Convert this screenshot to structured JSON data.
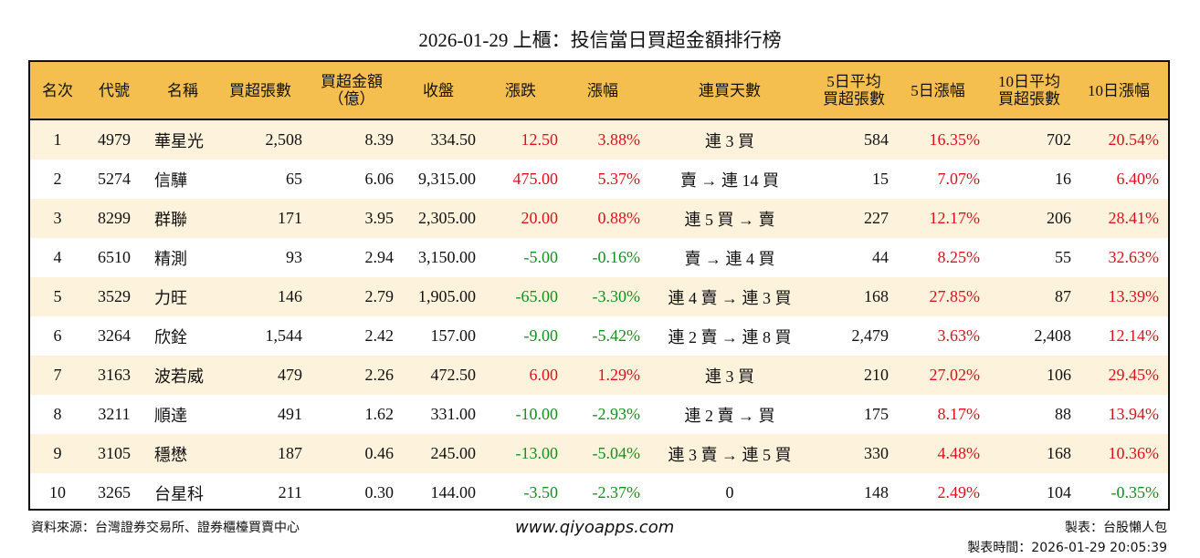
{
  "title": "2026-01-29 上櫃：投信當日買超金額排行榜",
  "colors": {
    "header_bg": "#f5bf4f",
    "stripe_bg": "#fdf3dc",
    "up": "#e0101a",
    "down": "#14901e"
  },
  "columns": [
    "名次",
    "代號",
    "名稱",
    "買超張數",
    "買超金額\n（億）",
    "收盤",
    "漲跌",
    "漲幅",
    "連買天數",
    "5日平均\n買超張數",
    "5日漲幅",
    "10日平均\n買超張數",
    "10日漲幅"
  ],
  "rows": [
    [
      "1",
      "4979",
      "華星光",
      "2,508",
      "8.39",
      "334.50",
      "12.50",
      "3.88%",
      "連 3 買",
      "584",
      "16.35%",
      "702",
      "20.54%"
    ],
    [
      "2",
      "5274",
      "信驊",
      "65",
      "6.06",
      "9,315.00",
      "475.00",
      "5.37%",
      "賣 → 連 14 買",
      "15",
      "7.07%",
      "16",
      "6.40%"
    ],
    [
      "3",
      "8299",
      "群聯",
      "171",
      "3.95",
      "2,305.00",
      "20.00",
      "0.88%",
      "連 5 買 → 賣",
      "227",
      "12.17%",
      "206",
      "28.41%"
    ],
    [
      "4",
      "6510",
      "精測",
      "93",
      "2.94",
      "3,150.00",
      "-5.00",
      "-0.16%",
      "賣 → 連 4 買",
      "44",
      "8.25%",
      "55",
      "32.63%"
    ],
    [
      "5",
      "3529",
      "力旺",
      "146",
      "2.79",
      "1,905.00",
      "-65.00",
      "-3.30%",
      "連 4 賣 → 連 3 買",
      "168",
      "27.85%",
      "87",
      "13.39%"
    ],
    [
      "6",
      "3264",
      "欣銓",
      "1,544",
      "2.42",
      "157.00",
      "-9.00",
      "-5.42%",
      "連 2 賣 → 連 8 買",
      "2,479",
      "3.63%",
      "2,408",
      "12.14%"
    ],
    [
      "7",
      "3163",
      "波若威",
      "479",
      "2.26",
      "472.50",
      "6.00",
      "1.29%",
      "連 3 買",
      "210",
      "27.02%",
      "106",
      "29.45%"
    ],
    [
      "8",
      "3211",
      "順達",
      "491",
      "1.62",
      "331.00",
      "-10.00",
      "-2.93%",
      "連 2 賣 → 買",
      "175",
      "8.17%",
      "88",
      "13.94%"
    ],
    [
      "9",
      "3105",
      "穩懋",
      "187",
      "0.46",
      "245.00",
      "-13.00",
      "-5.04%",
      "連 3 賣 → 連 5 買",
      "330",
      "4.48%",
      "168",
      "10.36%"
    ],
    [
      "10",
      "3265",
      "台星科",
      "211",
      "0.30",
      "144.00",
      "-3.50",
      "-2.37%",
      "0",
      "148",
      "2.49%",
      "104",
      "-0.35%"
    ]
  ],
  "footer": {
    "source": "資料來源：台灣證券交易所、證券櫃檯買賣中心",
    "website": "www.qiyoapps.com",
    "maker": "製表：台股懶人包",
    "time": "製表時間：2026-01-29 20:05:39"
  }
}
